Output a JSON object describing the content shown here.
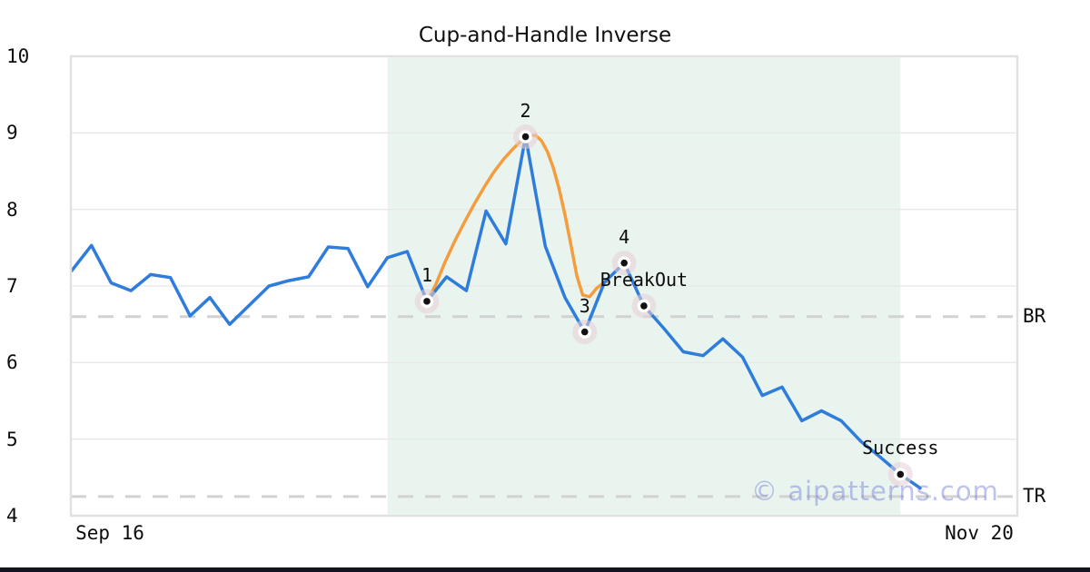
{
  "page": {
    "title": "Cup-and-Handle Inverse",
    "watermark": "© aipatterns.com"
  },
  "chart_data": {
    "type": "line",
    "title": "Cup-and-Handle Inverse",
    "ylim": [
      4,
      10
    ],
    "y_ticks": [
      10,
      9,
      8,
      7,
      6,
      5,
      4
    ],
    "grid_values": [
      9,
      8,
      7,
      6,
      5
    ],
    "x_tick_labels": [
      "Sep 16",
      "Nov 20"
    ],
    "hlines": [
      {
        "label": "BR",
        "value": 6.6,
        "style": "dashed",
        "color": "#d2d2d2"
      },
      {
        "label": "TR",
        "value": 4.25,
        "style": "dashed",
        "color": "#d2d2d2"
      }
    ],
    "shaded_region": {
      "from_index": 16,
      "to_index": 42,
      "color": "#e9f4ef"
    },
    "series": [
      {
        "name": "price",
        "type": "line",
        "color": "#2e7cdb",
        "values": [
          7.2,
          7.53,
          7.04,
          6.94,
          7.15,
          7.11,
          6.61,
          6.85,
          6.5,
          6.75,
          7.0,
          7.07,
          7.12,
          7.51,
          7.49,
          6.99,
          7.37,
          7.45,
          6.8,
          7.12,
          6.94,
          7.98,
          7.55,
          8.95,
          7.52,
          6.85,
          6.4,
          7.05,
          7.3,
          6.74,
          6.45,
          6.14,
          6.09,
          6.31,
          6.07,
          5.57,
          5.68,
          5.24,
          5.37,
          5.24,
          4.97,
          4.76,
          4.54,
          4.36
        ]
      },
      {
        "name": "pattern-arc",
        "type": "curve",
        "color": "#f59d3d",
        "points": [
          [
            18,
            6.8
          ],
          [
            18.45,
            7.02
          ],
          [
            18.9,
            7.3
          ],
          [
            19.4,
            7.58
          ],
          [
            19.9,
            7.83
          ],
          [
            20.4,
            8.07
          ],
          [
            20.9,
            8.29
          ],
          [
            21.4,
            8.49
          ],
          [
            21.9,
            8.66
          ],
          [
            22.4,
            8.8
          ],
          [
            22.8,
            8.9
          ],
          [
            23.2,
            8.96
          ],
          [
            23.5,
            8.97
          ],
          [
            23.8,
            8.9
          ],
          [
            24.1,
            8.76
          ],
          [
            24.4,
            8.55
          ],
          [
            24.7,
            8.27
          ],
          [
            25.0,
            7.93
          ],
          [
            25.3,
            7.54
          ],
          [
            25.6,
            7.13
          ],
          [
            25.9,
            6.88
          ],
          [
            26.25,
            6.86
          ],
          [
            26.6,
            6.97
          ],
          [
            27.0,
            7.05
          ],
          [
            27.2,
            7.06
          ]
        ]
      }
    ],
    "markers": [
      {
        "label": "1",
        "index": 18,
        "value": 6.8
      },
      {
        "label": "2",
        "index": 23,
        "value": 8.95
      },
      {
        "label": "3",
        "index": 26,
        "value": 6.4
      },
      {
        "label": "4",
        "index": 28,
        "value": 7.3
      },
      {
        "label": "BreakOut",
        "index": 29,
        "value": 6.74
      },
      {
        "label": "Success",
        "index": 42,
        "value": 4.54
      }
    ],
    "marker_style": {
      "halo": "#e8cdd5",
      "ring": "#ffffff",
      "dot": "#111111"
    },
    "watermark": "© aipatterns.com"
  }
}
